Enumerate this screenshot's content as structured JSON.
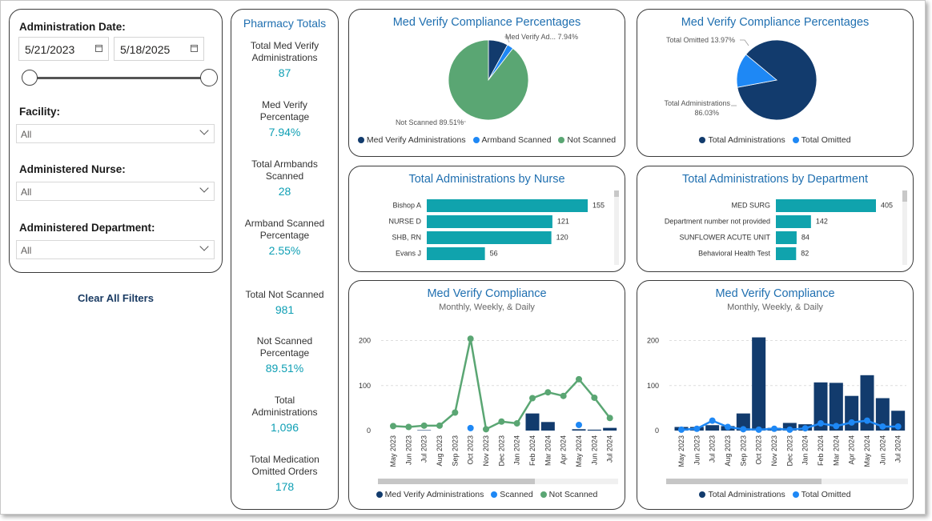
{
  "filters": {
    "admin_date_label": "Administration Date:",
    "start_date": "5/21/2023",
    "end_date": "5/18/2025",
    "facility_label": "Facility:",
    "facility_value": "All",
    "nurse_label": "Administered Nurse:",
    "nurse_value": "All",
    "department_label": "Administered Department:",
    "department_value": "All",
    "clear_label": "Clear All Filters"
  },
  "totals": {
    "title": "Pharmacy Totals",
    "items": [
      {
        "label": "Total Med Verify Administrations",
        "value": "87"
      },
      {
        "label": "Med Verify Percentage",
        "value": "7.94%"
      },
      {
        "label": "Total Armbands Scanned",
        "value": "28"
      },
      {
        "label": "Armband Scanned Percentage",
        "value": "2.55%"
      },
      {
        "label": "Total Not Scanned",
        "value": "981"
      },
      {
        "label": "Not Scanned Percentage",
        "value": "89.51%"
      },
      {
        "label": "Total Administrations",
        "value": "1,096"
      },
      {
        "label": "Total Medication Omitted Orders",
        "value": "178"
      }
    ]
  },
  "colors": {
    "navy": "#123b6d",
    "blue": "#1e88f5",
    "green": "#5aa673",
    "teal": "#10a3ad",
    "accent_text": "#1f6fb0",
    "kpi_value": "#0e9fb4"
  },
  "chart_data": [
    {
      "id": "pie1",
      "type": "pie",
      "title": "Med Verify Compliance Percentages",
      "slices": [
        {
          "name": "Med Verify Administrations",
          "value": 7.94,
          "color": "#123b6d"
        },
        {
          "name": "Armband Scanned",
          "value": 2.55,
          "color": "#1e88f5"
        },
        {
          "name": "Not Scanned",
          "value": 89.51,
          "color": "#5aa673"
        }
      ],
      "data_labels": [
        "Med Verify Ad... 7.94%",
        "Not Scanned 89.51%"
      ],
      "legend": [
        "Med Verify Administrations",
        "Armband Scanned",
        "Not Scanned"
      ]
    },
    {
      "id": "pie2",
      "type": "pie",
      "title": "Med Verify Compliance Percentages",
      "slices": [
        {
          "name": "Total Administrations",
          "value": 86.03,
          "color": "#123b6d"
        },
        {
          "name": "Total Omitted",
          "value": 13.97,
          "color": "#1e88f5"
        }
      ],
      "data_labels": [
        "Total Omitted 13.97%",
        "Total Administrations",
        "86.03%"
      ],
      "legend": [
        "Total Administrations",
        "Total Omitted"
      ]
    },
    {
      "id": "bar_nurse",
      "type": "bar",
      "orientation": "horizontal",
      "title": "Total Administrations by Nurse",
      "categories": [
        "Bishop A",
        "NURSE D",
        "SHB, RN",
        "Evans J"
      ],
      "values": [
        155,
        121,
        120,
        56
      ],
      "xlim": [
        0,
        155
      ]
    },
    {
      "id": "bar_dept",
      "type": "bar",
      "orientation": "horizontal",
      "title": "Total Administrations by Department",
      "categories": [
        "MED SURG",
        "Department number not provided",
        "SUNFLOWER ACUTE UNIT",
        "Behavioral Health Test"
      ],
      "values": [
        405,
        142,
        84,
        82
      ],
      "xlim": [
        0,
        405
      ]
    },
    {
      "id": "combo1",
      "type": "line",
      "title": "Med Verify Compliance",
      "subtitle": "Monthly, Weekly, & Daily",
      "categories": [
        "May 2023",
        "Jun 2023",
        "Jul 2023",
        "Aug 2023",
        "Sep 2023",
        "Oct 2023",
        "Nov 2023",
        "Dec 2023",
        "Jan 2024",
        "Feb 2024",
        "Mar 2024",
        "Apr 2024",
        "May 2024",
        "Jun 2024",
        "Jul 2024"
      ],
      "yticks": [
        "0",
        "100",
        "200"
      ],
      "ylim": [
        0,
        220
      ],
      "series": [
        {
          "name": "Med Verify Administrations",
          "kind": "bar",
          "color": "#123b6d",
          "values": [
            0,
            0,
            1,
            0,
            0,
            0,
            0,
            0,
            0,
            38,
            19,
            0,
            3,
            2,
            6
          ]
        },
        {
          "name": "Scanned",
          "kind": "dot",
          "color": "#1e88f5",
          "values": [
            null,
            null,
            null,
            null,
            null,
            2,
            null,
            null,
            null,
            null,
            null,
            null,
            9,
            null,
            null
          ]
        },
        {
          "name": "Not Scanned",
          "kind": "line",
          "color": "#5aa673",
          "values": [
            10,
            8,
            11,
            11,
            40,
            204,
            3,
            20,
            16,
            72,
            85,
            77,
            114,
            73,
            28
          ]
        }
      ],
      "legend": [
        "Med Verify Administrations",
        "Scanned",
        "Not Scanned"
      ]
    },
    {
      "id": "combo2",
      "type": "bar",
      "title": "Med Verify Compliance",
      "subtitle": "Monthly, Weekly, & Daily",
      "categories": [
        "May 2023",
        "Jun 2023",
        "Jul 2023",
        "Aug 2023",
        "Sep 2023",
        "Oct 2023",
        "Nov 2023",
        "Dec 2023",
        "Jan 2024",
        "Feb 2024",
        "Mar 2024",
        "Apr 2024",
        "May 2024",
        "Jun 2024",
        "Jul 2024"
      ],
      "yticks": [
        "0",
        "100",
        "200"
      ],
      "ylim": [
        0,
        220
      ],
      "series": [
        {
          "name": "Total Administrations",
          "kind": "bar",
          "color": "#123b6d",
          "values": [
            8,
            8,
            12,
            10,
            38,
            207,
            6,
            17,
            14,
            107,
            106,
            77,
            123,
            72,
            44
          ]
        },
        {
          "name": "Total Omitted",
          "kind": "line",
          "color": "#1e88f5",
          "values": [
            2,
            4,
            22,
            8,
            3,
            2,
            4,
            2,
            5,
            16,
            10,
            18,
            22,
            9,
            9
          ]
        }
      ],
      "legend": [
        "Total Administrations",
        "Total Omitted"
      ]
    }
  ]
}
